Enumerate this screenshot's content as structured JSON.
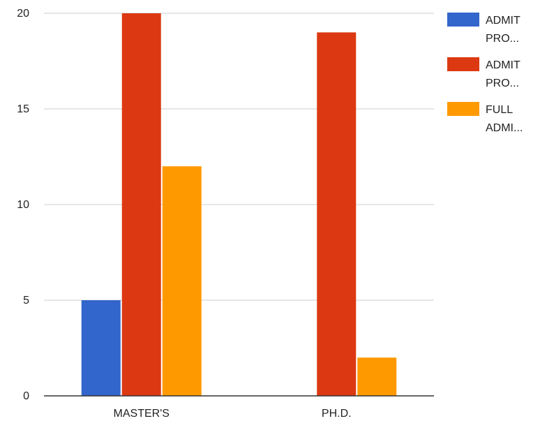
{
  "chart_data": {
    "type": "bar",
    "categories": [
      "MASTER'S",
      "PH.D."
    ],
    "series": [
      {
        "name": "ADMIT PRO...",
        "legend_lines": [
          "ADMIT",
          "PRO..."
        ],
        "color": "#3366cc",
        "values": [
          5,
          0
        ]
      },
      {
        "name": "ADMIT PRO...",
        "legend_lines": [
          "ADMIT",
          "PRO..."
        ],
        "color": "#dc3912",
        "values": [
          20,
          19
        ]
      },
      {
        "name": "FULL ADMI...",
        "legend_lines": [
          "FULL",
          "ADMI..."
        ],
        "color": "#ff9900",
        "values": [
          12,
          2
        ]
      }
    ],
    "yticks": [
      0,
      5,
      10,
      15,
      20
    ],
    "ylim": [
      0,
      20
    ],
    "grid": true,
    "legend_position": "right",
    "title": "",
    "xlabel": "",
    "ylabel": ""
  }
}
